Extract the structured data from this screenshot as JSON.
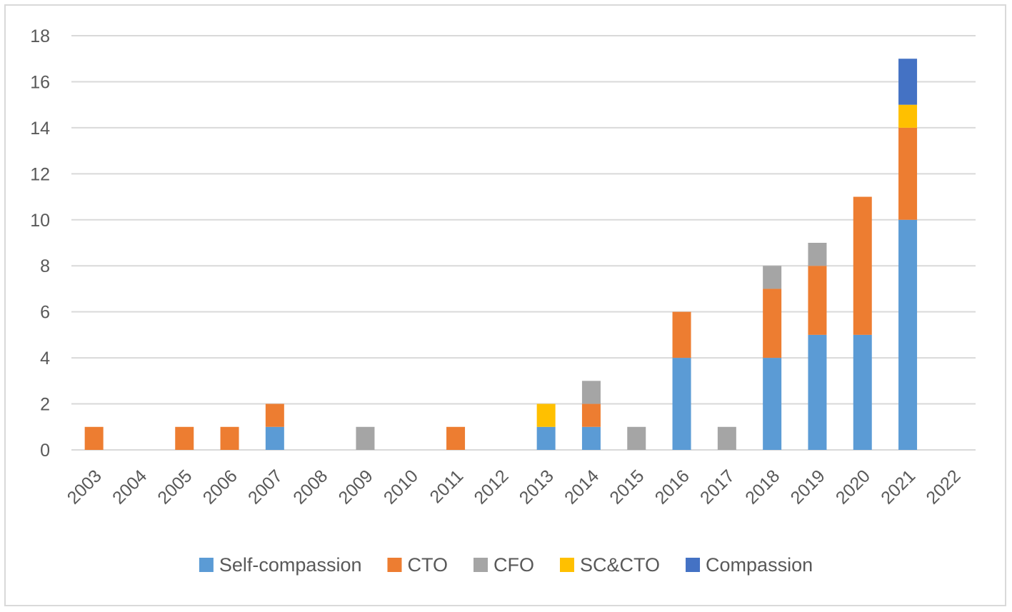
{
  "chart_data": {
    "type": "bar",
    "stacked": true,
    "title": "",
    "xlabel": "",
    "ylabel": "",
    "ylim": [
      0,
      18
    ],
    "yticks": [
      0,
      2,
      4,
      6,
      8,
      10,
      12,
      14,
      16,
      18
    ],
    "grid": true,
    "legend_position": "bottom",
    "categories": [
      "2003",
      "2004",
      "2005",
      "2006",
      "2007",
      "2008",
      "2009",
      "2010",
      "2011",
      "2012",
      "2013",
      "2014",
      "2015",
      "2016",
      "2017",
      "2018",
      "2019",
      "2020",
      "2021",
      "2022"
    ],
    "series": [
      {
        "name": "Self-compassion",
        "color": "#5b9bd5",
        "values": [
          0,
          0,
          0,
          0,
          1,
          0,
          0,
          0,
          0,
          0,
          1,
          1,
          0,
          4,
          0,
          4,
          5,
          5,
          10,
          0
        ]
      },
      {
        "name": "CTO",
        "color": "#ed7d31",
        "values": [
          1,
          0,
          1,
          1,
          1,
          0,
          0,
          0,
          1,
          0,
          0,
          1,
          0,
          2,
          0,
          3,
          3,
          6,
          4,
          0
        ]
      },
      {
        "name": "CFO",
        "color": "#a5a5a5",
        "values": [
          0,
          0,
          0,
          0,
          0,
          0,
          1,
          0,
          0,
          0,
          0,
          1,
          1,
          0,
          1,
          1,
          1,
          0,
          0,
          0
        ]
      },
      {
        "name": "SC&CTO",
        "color": "#ffc000",
        "values": [
          0,
          0,
          0,
          0,
          0,
          0,
          0,
          0,
          0,
          0,
          1,
          0,
          0,
          0,
          0,
          0,
          0,
          0,
          1,
          0
        ]
      },
      {
        "name": "Compassion",
        "color": "#4472c4",
        "values": [
          0,
          0,
          0,
          0,
          0,
          0,
          0,
          0,
          0,
          0,
          0,
          0,
          0,
          0,
          0,
          0,
          0,
          0,
          2,
          0
        ]
      }
    ]
  }
}
